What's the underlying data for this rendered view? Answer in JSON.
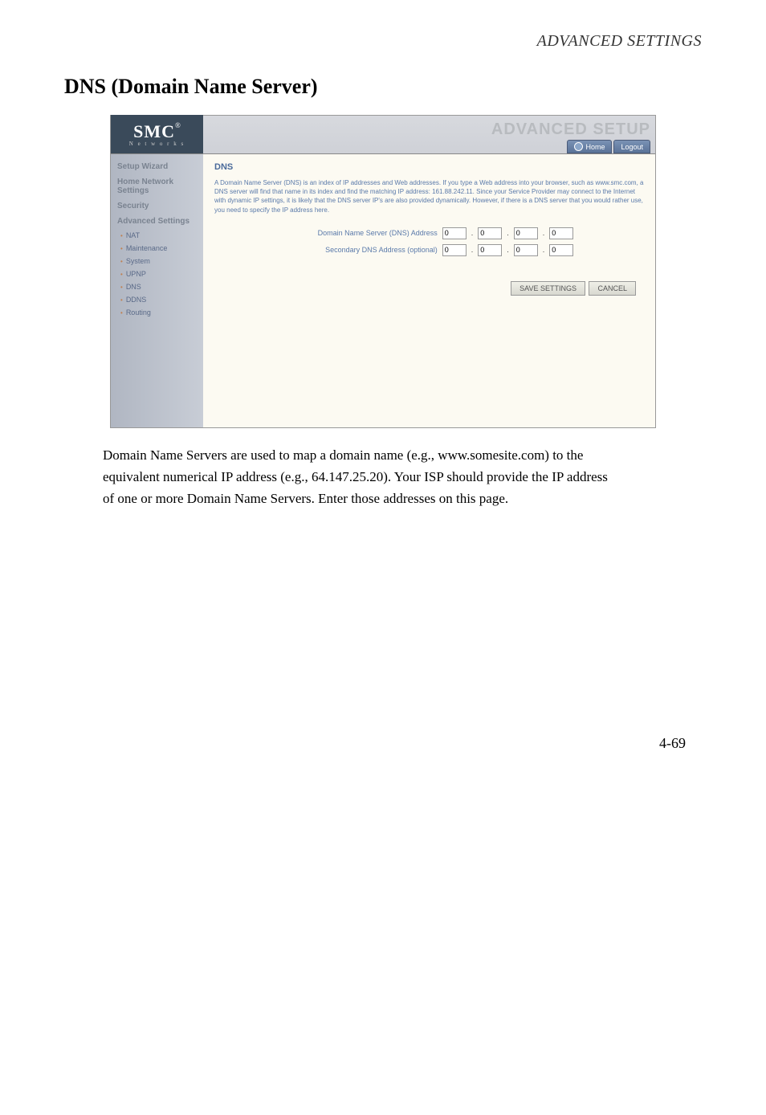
{
  "header": {
    "chapter": "ADVANCED SETTINGS"
  },
  "title": "DNS (Domain Name Server)",
  "router": {
    "logo": {
      "main": "SMC",
      "reg": "®",
      "sub": "N e t w o r k s"
    },
    "brand": "ADVANCED SETUP",
    "tabs": {
      "home": "Home",
      "logout": "Logout"
    },
    "sidebar": {
      "setupWizard": "Setup Wizard",
      "homeNetwork": "Home Network Settings",
      "security": "Security",
      "advanced": "Advanced Settings",
      "nat": "NAT",
      "maintenance": "Maintenance",
      "system": "System",
      "upnp": "UPNP",
      "dns": "DNS",
      "ddns": "DDNS",
      "routing": "Routing"
    },
    "content": {
      "heading": "DNS",
      "desc": "A Domain Name Server (DNS) is an index of IP addresses and Web addresses. If you type a Web address into your browser, such as www.smc.com, a DNS server will find that name in its index and find the matching IP address: 161.88.242.11. Since your Service Provider may connect to the Internet with dynamic IP settings, it is likely that the DNS server IP's are also provided dynamically. However, if there is a DNS server that you would rather use, you need to specify the IP address here.",
      "row1label": "Domain Name Server (DNS) Address",
      "row2label": "Secondary DNS Address (optional)",
      "ip1": [
        "0",
        "0",
        "0",
        "0"
      ],
      "ip2": [
        "0",
        "0",
        "0",
        "0"
      ],
      "saveBtn": "SAVE SETTINGS",
      "cancelBtn": "CANCEL"
    }
  },
  "para": "Domain Name Servers are used to map a domain name (e.g., www.somesite.com) to the equivalent numerical IP address (e.g., 64.147.25.20). Your ISP should provide the IP address of one or more Domain Name Servers. Enter those addresses on this page.",
  "pageNum": "4-69"
}
